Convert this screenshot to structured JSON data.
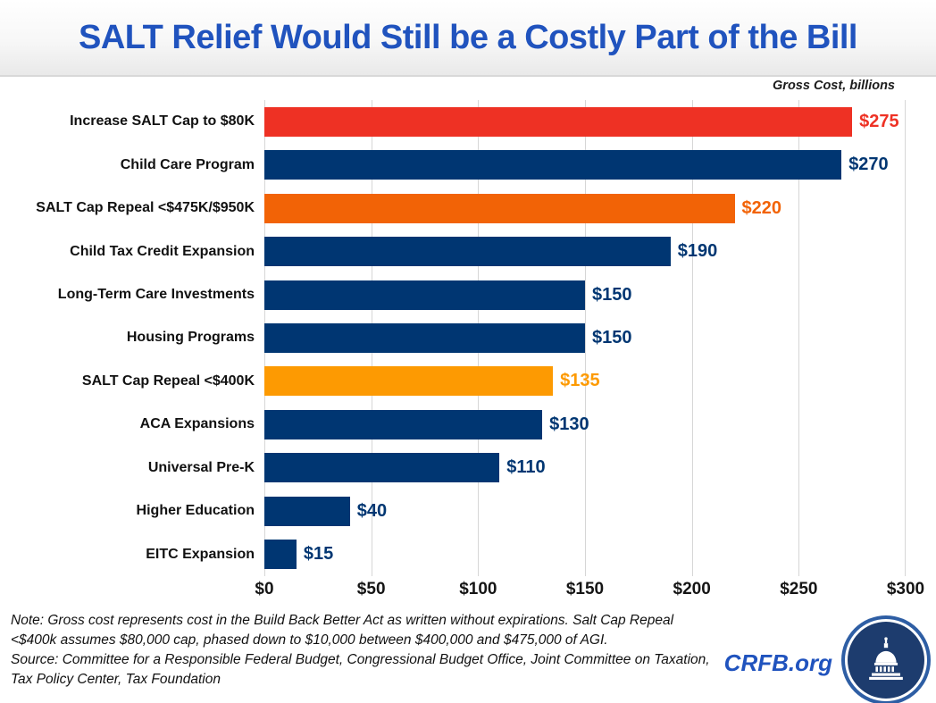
{
  "header": {
    "title": "SALT Relief Would Still be a Costly Part of the Bill",
    "units_label": "Gross Cost, billions"
  },
  "chart_data": {
    "type": "bar",
    "orientation": "horizontal",
    "title": "SALT Relief Would Still be a Costly Part of the Bill",
    "xlabel": "",
    "ylabel": "",
    "units_label": "Gross Cost, billions",
    "xlim": [
      0,
      300
    ],
    "x_ticks": [
      "$0",
      "$50",
      "$100",
      "$150",
      "$200",
      "$250",
      "$300"
    ],
    "grid": true,
    "legend": false,
    "bars": [
      {
        "label": "Increase SALT Cap to $80K",
        "value": 275,
        "value_label": "$275",
        "color": "#EE3124"
      },
      {
        "label": "Child Care Program",
        "value": 270,
        "value_label": "$270",
        "color": "#003672"
      },
      {
        "label": "SALT Cap Repeal <$475K/$950K",
        "value": 220,
        "value_label": "$220",
        "color": "#F26306"
      },
      {
        "label": "Child Tax Credit Expansion",
        "value": 190,
        "value_label": "$190",
        "color": "#003672"
      },
      {
        "label": "Long-Term Care Investments",
        "value": 150,
        "value_label": "$150",
        "color": "#003672"
      },
      {
        "label": "Housing Programs",
        "value": 150,
        "value_label": "$150",
        "color": "#003672"
      },
      {
        "label": "SALT Cap Repeal <$400K",
        "value": 135,
        "value_label": "$135",
        "color": "#FD9A02"
      },
      {
        "label": "ACA Expansions",
        "value": 130,
        "value_label": "$130",
        "color": "#003672"
      },
      {
        "label": "Universal Pre-K",
        "value": 110,
        "value_label": "$110",
        "color": "#003672"
      },
      {
        "label": "Higher Education",
        "value": 40,
        "value_label": "$40",
        "color": "#003672"
      },
      {
        "label": "EITC Expansion",
        "value": 15,
        "value_label": "$15",
        "color": "#003672"
      }
    ]
  },
  "footer": {
    "note_line1": "Note: Gross cost represents cost in the Build Back Better Act as written without expirations. Salt Cap Repeal",
    "note_line2": "<$400k assumes $80,000 cap, phased down to $10,000 between $400,000 and $475,000 of AGI.",
    "source_line1": "Source: Committee for a Responsible Federal Budget, Congressional Budget Office, Joint Committee on Taxation,",
    "source_line2": "Tax Policy Center, Tax Foundation",
    "brand": "CRFB.org",
    "logo_icon": "capitol-dome-icon"
  },
  "colors": {
    "title_blue": "#2053BE",
    "brand_blue": "#2053BE",
    "navy": "#003672",
    "red": "#EE3124",
    "orange": "#F26306",
    "amber": "#FD9A02",
    "gridline": "#D6D6D6"
  }
}
